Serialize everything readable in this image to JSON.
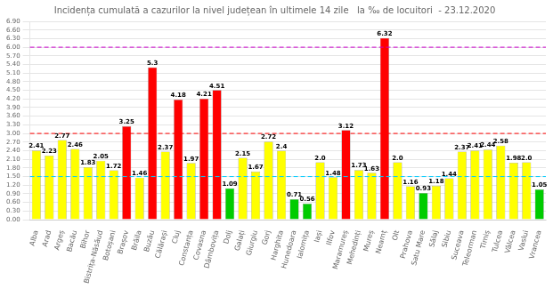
{
  "chart_data": {
    "type": "bar",
    "title": "Incidența cumulată a cazurilor la nivel județean în ultimele 14 zile   la ‰ de locuitori  - 23.12.2020",
    "categories": [
      "Alba",
      "Arad",
      "Argeș",
      "Bacău",
      "Bihor",
      "Bistrița-Năsăud",
      "Botoșani",
      "Brașov",
      "Brăila",
      "Buzău",
      "Călărași",
      "Cluj",
      "Constanța",
      "Covasna",
      "Dâmbovița",
      "Dolj",
      "Galați",
      "Giurgiu",
      "Gorj",
      "Harghita",
      "Hunedoara",
      "Ialomița",
      "Iași",
      "Ilfov",
      "Maramureș",
      "Mehedinți",
      "Mureș",
      "Neamț",
      "Olt",
      "Prahova",
      "Satu Mare",
      "Sălaj",
      "Sibiu",
      "Suceava",
      "Teleorman",
      "Timiș",
      "Tulcea",
      "Vâlcea",
      "Vaslui",
      "Vrancea"
    ],
    "values": [
      2.41,
      2.23,
      2.77,
      2.46,
      1.83,
      2.05,
      1.72,
      3.25,
      1.46,
      5.3,
      2.37,
      4.18,
      1.97,
      4.21,
      4.51,
      1.09,
      2.15,
      1.67,
      2.72,
      2.4,
      0.71,
      0.56,
      2.0,
      1.48,
      3.12,
      1.73,
      1.63,
      6.32,
      2.0,
      1.16,
      0.93,
      1.18,
      1.44,
      2.37,
      2.41,
      2.44,
      2.58,
      1.98,
      2.0,
      1.05
    ],
    "value_labels": [
      "2.41",
      "2.23",
      "2.77",
      "2.46",
      "1.83",
      "2.05",
      "1.72",
      "3.25",
      "1.46",
      "5.3",
      "2.37",
      "4.18",
      "1.97",
      "4.21",
      "4.51",
      "1.09",
      "2.15",
      "1.67",
      "2.72",
      "2.4",
      "0.71",
      "0.56",
      "2.0",
      "1.48",
      "3.12",
      "1.73",
      "1.63",
      "6.32",
      "2.0",
      "1.16",
      "0.93",
      "1.18",
      "1.44",
      "2.37",
      "2.41",
      "2.44",
      "2.58",
      "1.98",
      "2.0",
      "1.05"
    ],
    "colors": [
      "#ffff00",
      "#ffff00",
      "#ffff00",
      "#ffff00",
      "#ffff00",
      "#ffff00",
      "#ffff00",
      "#ff0000",
      "#ffff00",
      "#ff0000",
      "#ffff00",
      "#ff0000",
      "#ffff00",
      "#ff0000",
      "#ff0000",
      "#00cc00",
      "#ffff00",
      "#ffff00",
      "#ffff00",
      "#ffff00",
      "#00cc00",
      "#00cc00",
      "#ffff00",
      "#ffff00",
      "#ff0000",
      "#ffff00",
      "#ffff00",
      "#ff0000",
      "#ffff00",
      "#ffff00",
      "#00cc00",
      "#ffff00",
      "#ffff00",
      "#ffff00",
      "#ffff00",
      "#ffff00",
      "#ffff00",
      "#ffff00",
      "#ffff00",
      "#00cc00"
    ],
    "data_labels": true,
    "reference_lines": [
      {
        "value": 3.0,
        "color": "#ff0000",
        "line_style": "dashed"
      },
      {
        "value": 1.5,
        "color": "#00ccff",
        "line_style": "dashed"
      },
      {
        "value": 6.0,
        "color": "#cc00cc",
        "line_style": "dashed"
      }
    ],
    "ylim": [
      0,
      6.9
    ],
    "yticks": [
      {
        "value": 0,
        "label": "0.00"
      },
      {
        "value": 0.3,
        "label": "0.30"
      },
      {
        "value": 0.6,
        "label": "0.60"
      },
      {
        "value": 0.9,
        "label": "0.90"
      },
      {
        "value": 1.2,
        "label": "1.20"
      },
      {
        "value": 1.5,
        "label": "1.50"
      },
      {
        "value": 1.8,
        "label": "1.80"
      },
      {
        "value": 2.1,
        "label": "2.10"
      },
      {
        "value": 2.4,
        "label": "2.40"
      },
      {
        "value": 2.7,
        "label": "2.70"
      },
      {
        "value": 3.0,
        "label": "3.00"
      },
      {
        "value": 3.3,
        "label": "3.30"
      },
      {
        "value": 3.6,
        "label": "3.60"
      },
      {
        "value": 3.9,
        "label": "3.90"
      },
      {
        "value": 4.2,
        "label": "4.20"
      },
      {
        "value": 4.5,
        "label": "4.50"
      },
      {
        "value": 4.8,
        "label": "4.80"
      },
      {
        "value": 5.1,
        "label": "5.10"
      },
      {
        "value": 5.4,
        "label": "5.40"
      },
      {
        "value": 5.7,
        "label": "5.70"
      },
      {
        "value": 6.0,
        "label": "6.00"
      },
      {
        "value": 6.3,
        "label": "6.30"
      },
      {
        "value": 6.6,
        "label": "6.60"
      },
      {
        "value": 6.9,
        "label": "6.90"
      }
    ],
    "grid": true
  }
}
